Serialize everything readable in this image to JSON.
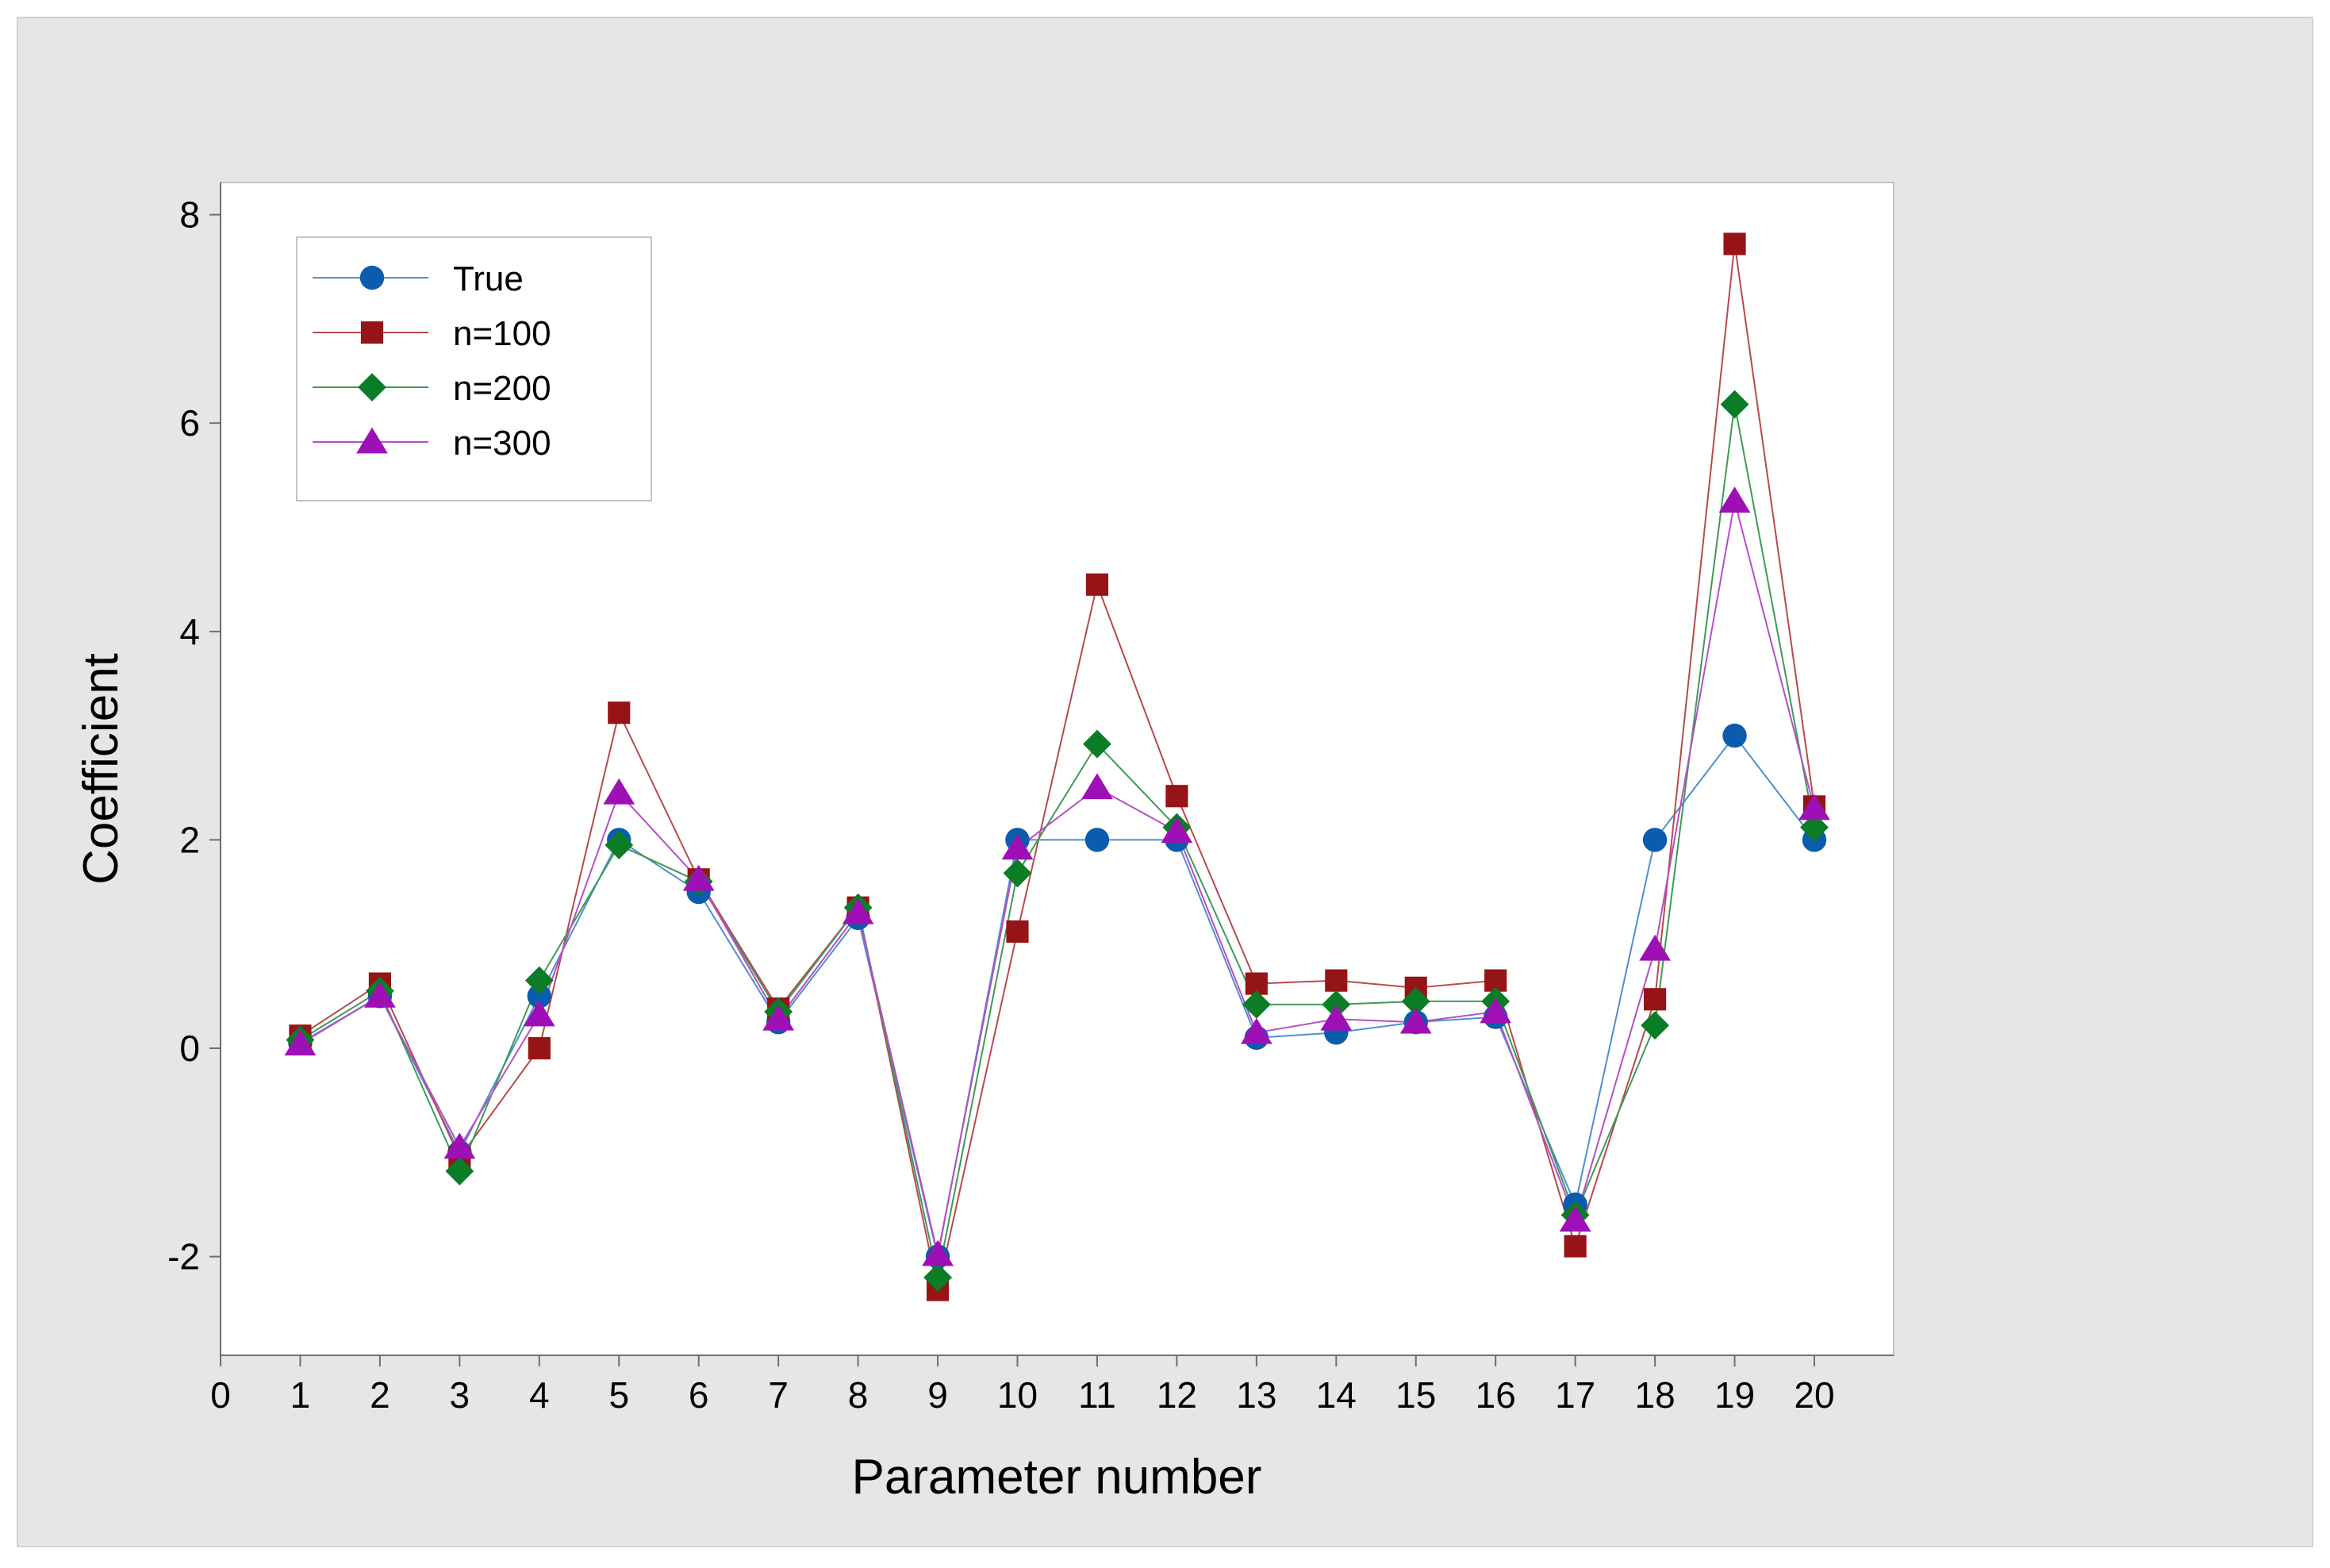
{
  "chart_data": {
    "type": "line",
    "title": "",
    "xlabel": "Parameter number",
    "ylabel": "Coefficient",
    "xlim": [
      0,
      20
    ],
    "ylim": [
      -2.9,
      8.3
    ],
    "x_ticks": [
      0,
      1,
      2,
      3,
      4,
      5,
      6,
      7,
      8,
      9,
      10,
      11,
      12,
      13,
      14,
      15,
      16,
      17,
      18,
      19,
      20
    ],
    "y_ticks": [
      -2,
      0,
      2,
      4,
      6,
      8
    ],
    "grid": false,
    "legend_position": "top-left",
    "x": [
      1,
      2,
      3,
      4,
      5,
      6,
      7,
      8,
      9,
      10,
      11,
      12,
      13,
      14,
      15,
      16,
      17,
      18,
      19,
      20
    ],
    "series": [
      {
        "name": "True",
        "marker": "circle",
        "color": "#0b5cad",
        "line_color": "#4f8fd0",
        "values": [
          0.05,
          0.5,
          -1.0,
          0.5,
          2.0,
          1.5,
          0.25,
          1.25,
          -2.0,
          2.0,
          2.0,
          2.0,
          0.1,
          0.15,
          0.25,
          0.3,
          -1.5,
          2.0,
          3.0,
          2.0
        ]
      },
      {
        "name": "n=100",
        "marker": "square",
        "color": "#961416",
        "line_color": "#b84a4c",
        "values": [
          0.12,
          0.62,
          -1.05,
          0.0,
          3.22,
          1.62,
          0.38,
          1.35,
          -2.32,
          1.12,
          4.45,
          2.42,
          0.62,
          0.65,
          0.58,
          0.65,
          -1.9,
          0.47,
          7.72,
          2.32
        ]
      },
      {
        "name": "n=200",
        "marker": "diamond",
        "color": "#0b7d27",
        "line_color": "#3f9a57",
        "values": [
          0.08,
          0.55,
          -1.18,
          0.65,
          1.95,
          1.6,
          0.35,
          1.35,
          -2.2,
          1.68,
          2.92,
          2.12,
          0.42,
          0.42,
          0.45,
          0.45,
          -1.6,
          0.22,
          6.18,
          2.12
        ]
      },
      {
        "name": "n=300",
        "marker": "triangle",
        "color": "#9e10b5",
        "line_color": "#b54fc8",
        "values": [
          0.04,
          0.5,
          -0.95,
          0.32,
          2.45,
          1.62,
          0.28,
          1.3,
          -1.98,
          1.92,
          2.5,
          2.08,
          0.15,
          0.28,
          0.25,
          0.35,
          -1.65,
          0.95,
          5.25,
          2.3
        ]
      }
    ]
  }
}
